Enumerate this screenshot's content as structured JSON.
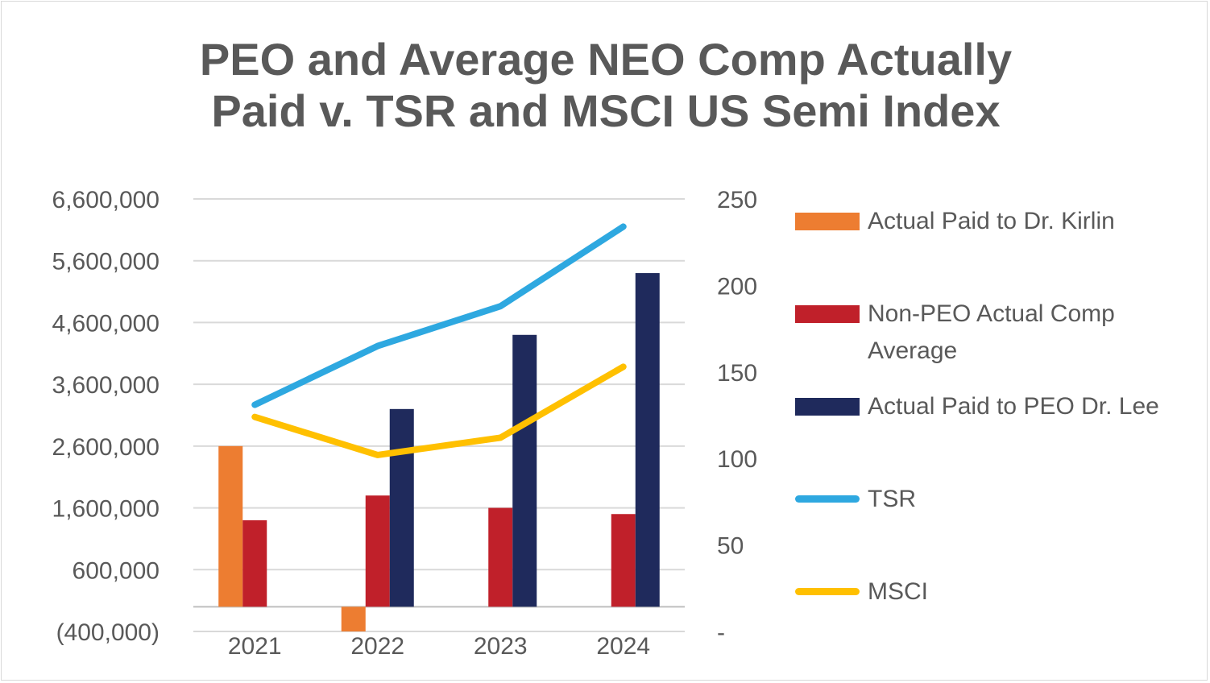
{
  "chart_data": {
    "type": "bar+line",
    "title": "PEO and Average NEO Comp Actually Paid v. TSR and MSCI US Semi Index",
    "title_lines": [
      "PEO and Average NEO Comp Actually",
      "Paid v. TSR and MSCI US Semi Index"
    ],
    "categories": [
      "2021",
      "2022",
      "2023",
      "2024"
    ],
    "y_left": {
      "ticks": [
        6600000,
        5600000,
        4600000,
        3600000,
        2600000,
        1600000,
        600000,
        -400000
      ],
      "tick_labels": [
        "6,600,000",
        "5,600,000",
        "4,600,000",
        "3,600,000",
        "2,600,000",
        "1,600,000",
        "600,000",
        "(400,000)"
      ],
      "lim": [
        -400000,
        6600000
      ]
    },
    "y_right": {
      "ticks": [
        250,
        200,
        150,
        100,
        50,
        0
      ],
      "tick_labels": [
        "250",
        "200",
        "150",
        "100",
        "50",
        "-"
      ],
      "lim": [
        0,
        250
      ]
    },
    "bar_series": [
      {
        "name": "Actual Paid to Dr. Kirlin",
        "color": "#ED7D31",
        "values": [
          2600000,
          -400000,
          null,
          null
        ]
      },
      {
        "name": "Non-PEO Actual Comp Average",
        "color": "#C0202A",
        "values": [
          1400000,
          1800000,
          1600000,
          1500000
        ]
      },
      {
        "name": "Actual Paid to PEO Dr. Lee",
        "color": "#1F2A5C",
        "values": [
          null,
          3200000,
          4400000,
          5400000
        ]
      }
    ],
    "line_series": [
      {
        "name": "TSR",
        "color": "#2EA8E0",
        "axis": "right",
        "values": [
          131,
          165,
          188,
          234
        ]
      },
      {
        "name": "MSCI",
        "color": "#FFC000",
        "axis": "right",
        "values": [
          124,
          102,
          112,
          153
        ]
      }
    ],
    "legend": [
      {
        "label": "Actual Paid to Dr. Kirlin",
        "kind": "bar",
        "color": "#ED7D31"
      },
      {
        "label": "Non-PEO Actual Comp Average",
        "kind": "bar",
        "color": "#C0202A"
      },
      {
        "label": "Actual Paid to PEO Dr. Lee",
        "kind": "bar",
        "color": "#1F2A5C"
      },
      {
        "label": "TSR",
        "kind": "line",
        "color": "#2EA8E0"
      },
      {
        "label": "MSCI",
        "kind": "line",
        "color": "#FFC000"
      }
    ],
    "legend_position": "right"
  }
}
